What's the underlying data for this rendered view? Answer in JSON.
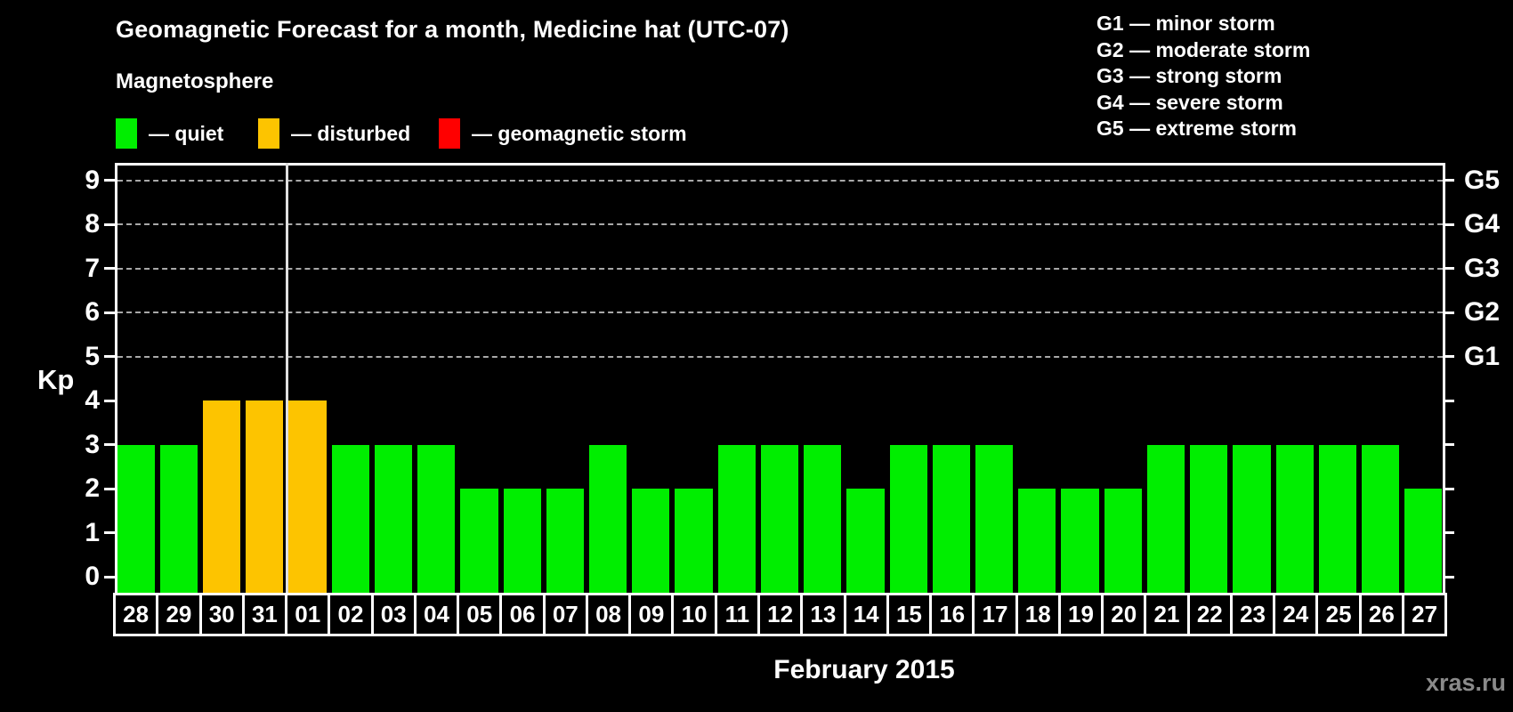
{
  "title": "Geomagnetic Forecast for a month, Medicine hat (UTC-07)",
  "subtitle": "Magnetosphere",
  "watermark": "xras.ru",
  "legend": {
    "items": [
      {
        "name": "quiet",
        "label": "— quiet",
        "color": "#00EE00"
      },
      {
        "name": "disturbed",
        "label": "— disturbed",
        "color": "#FDC400"
      },
      {
        "name": "storm",
        "label": "— geomagnetic storm",
        "color": "#FF0000"
      }
    ]
  },
  "g_scale_legend": [
    "G1 — minor storm",
    "G2 — moderate storm",
    "G3 — strong storm",
    "G4 — severe storm",
    "G5 — extreme storm"
  ],
  "chart_data": {
    "type": "bar",
    "title": "Geomagnetic Forecast for a month, Medicine hat (UTC-07)",
    "xlabel": "February 2015",
    "ylabel": "Kp",
    "ylim": [
      0,
      9
    ],
    "yticks": [
      0,
      1,
      2,
      3,
      4,
      5,
      6,
      7,
      8,
      9
    ],
    "gridlines_at": [
      5,
      6,
      7,
      8,
      9
    ],
    "grid": "horizontal dashed at Kp 5-9 only",
    "legend_position": "top",
    "categories": [
      "28",
      "29",
      "30",
      "31",
      "01",
      "02",
      "03",
      "04",
      "05",
      "06",
      "07",
      "08",
      "09",
      "10",
      "11",
      "12",
      "13",
      "14",
      "15",
      "16",
      "17",
      "18",
      "19",
      "20",
      "21",
      "22",
      "23",
      "24",
      "25",
      "26",
      "27"
    ],
    "values": [
      3,
      3,
      4,
      4,
      4,
      3,
      3,
      3,
      2,
      2,
      2,
      3,
      2,
      2,
      3,
      3,
      3,
      2,
      3,
      3,
      3,
      2,
      2,
      2,
      3,
      3,
      3,
      3,
      3,
      3,
      2
    ],
    "statuses": [
      "quiet",
      "quiet",
      "disturbed",
      "disturbed",
      "disturbed",
      "quiet",
      "quiet",
      "quiet",
      "quiet",
      "quiet",
      "quiet",
      "quiet",
      "quiet",
      "quiet",
      "quiet",
      "quiet",
      "quiet",
      "quiet",
      "quiet",
      "quiet",
      "quiet",
      "quiet",
      "quiet",
      "quiet",
      "quiet",
      "quiet",
      "quiet",
      "quiet",
      "quiet",
      "quiet",
      "quiet"
    ],
    "month_boundary_after_index": 3,
    "right_axis": [
      {
        "kp": 5,
        "label": "G1"
      },
      {
        "kp": 6,
        "label": "G2"
      },
      {
        "kp": 7,
        "label": "G3"
      },
      {
        "kp": 8,
        "label": "G4"
      },
      {
        "kp": 9,
        "label": "G5"
      }
    ],
    "colors": {
      "quiet": "#00EE00",
      "disturbed": "#FDC400",
      "storm": "#FF0000"
    }
  }
}
